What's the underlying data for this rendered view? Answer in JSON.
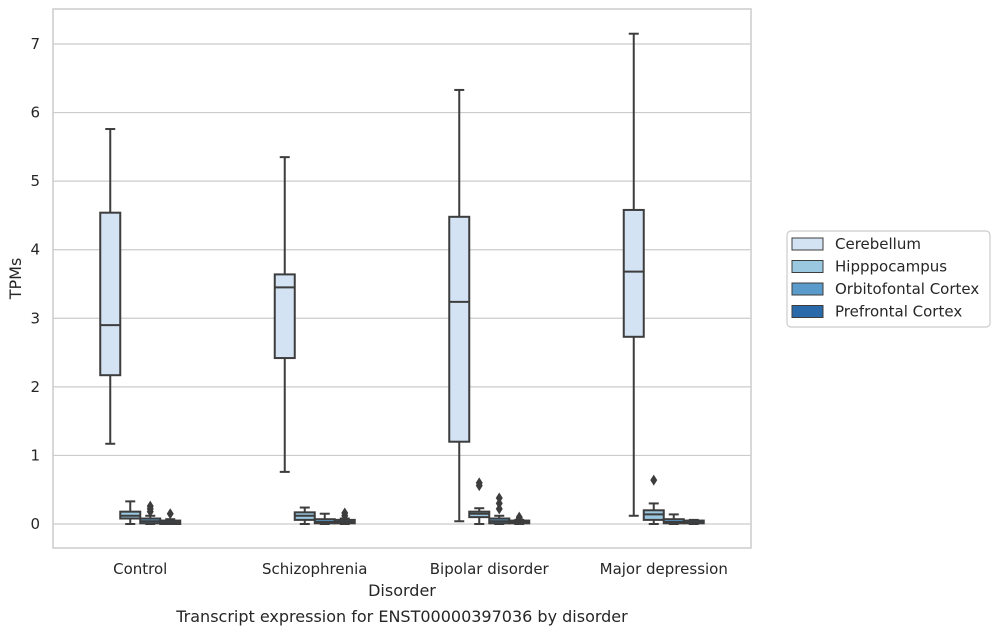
{
  "chart_data": {
    "type": "box",
    "title": "Transcript expression for ENST00000397036 by disorder",
    "xlabel": "Disorder",
    "ylabel": "TPMs",
    "ylim": [
      -0.35,
      7.5
    ],
    "yticks": [
      0,
      1,
      2,
      3,
      4,
      5,
      6,
      7
    ],
    "grid": true,
    "legend_position": "right",
    "categories": [
      "Control",
      "Schizophrenia",
      "Bipolar disorder",
      "Major depression"
    ],
    "series": [
      {
        "name": "Cerebellum",
        "color": "#d3e3f3",
        "boxes": [
          {
            "whislo": 1.17,
            "q1": 2.17,
            "med": 2.9,
            "q3": 4.54,
            "whishi": 5.76,
            "fliers": []
          },
          {
            "whislo": 0.76,
            "q1": 2.42,
            "med": 3.45,
            "q3": 3.64,
            "whishi": 5.35,
            "fliers": []
          },
          {
            "whislo": 0.04,
            "q1": 1.2,
            "med": 3.24,
            "q3": 4.48,
            "whishi": 6.33,
            "fliers": []
          },
          {
            "whislo": 0.12,
            "q1": 2.73,
            "med": 3.68,
            "q3": 4.58,
            "whishi": 7.15,
            "fliers": []
          }
        ]
      },
      {
        "name": "Hipppocampus",
        "color": "#9ac8e0",
        "boxes": [
          {
            "whislo": 0.0,
            "q1": 0.08,
            "med": 0.12,
            "q3": 0.18,
            "whishi": 0.33,
            "fliers": []
          },
          {
            "whislo": 0.0,
            "q1": 0.06,
            "med": 0.12,
            "q3": 0.17,
            "whishi": 0.24,
            "fliers": []
          },
          {
            "whislo": 0.0,
            "q1": 0.1,
            "med": 0.15,
            "q3": 0.18,
            "whishi": 0.23,
            "fliers": [
              0.56,
              0.6
            ]
          },
          {
            "whislo": 0.0,
            "q1": 0.06,
            "med": 0.14,
            "q3": 0.2,
            "whishi": 0.3,
            "fliers": [
              0.64
            ]
          }
        ]
      },
      {
        "name": "Orbitofontal Cortex",
        "color": "#5a9bcc",
        "boxes": [
          {
            "whislo": 0.0,
            "q1": 0.01,
            "med": 0.04,
            "q3": 0.08,
            "whishi": 0.12,
            "fliers": [
              0.18,
              0.22,
              0.26
            ]
          },
          {
            "whislo": 0.0,
            "q1": 0.01,
            "med": 0.03,
            "q3": 0.07,
            "whishi": 0.15,
            "fliers": []
          },
          {
            "whislo": 0.0,
            "q1": 0.01,
            "med": 0.04,
            "q3": 0.08,
            "whishi": 0.12,
            "fliers": [
              0.22,
              0.3,
              0.38
            ]
          },
          {
            "whislo": 0.0,
            "q1": 0.01,
            "med": 0.03,
            "q3": 0.07,
            "whishi": 0.14,
            "fliers": []
          }
        ]
      },
      {
        "name": "Prefrontal Cortex",
        "color": "#2a6aab",
        "boxes": [
          {
            "whislo": 0.0,
            "q1": 0.0,
            "med": 0.02,
            "q3": 0.05,
            "whishi": 0.07,
            "fliers": [
              0.15
            ]
          },
          {
            "whislo": 0.0,
            "q1": 0.01,
            "med": 0.03,
            "q3": 0.06,
            "whishi": 0.08,
            "fliers": [
              0.12,
              0.16
            ]
          },
          {
            "whislo": 0.0,
            "q1": 0.01,
            "med": 0.03,
            "q3": 0.05,
            "whishi": 0.06,
            "fliers": [
              0.08,
              0.1
            ]
          },
          {
            "whislo": 0.0,
            "q1": 0.01,
            "med": 0.02,
            "q3": 0.05,
            "whishi": 0.06,
            "fliers": []
          }
        ]
      }
    ]
  }
}
